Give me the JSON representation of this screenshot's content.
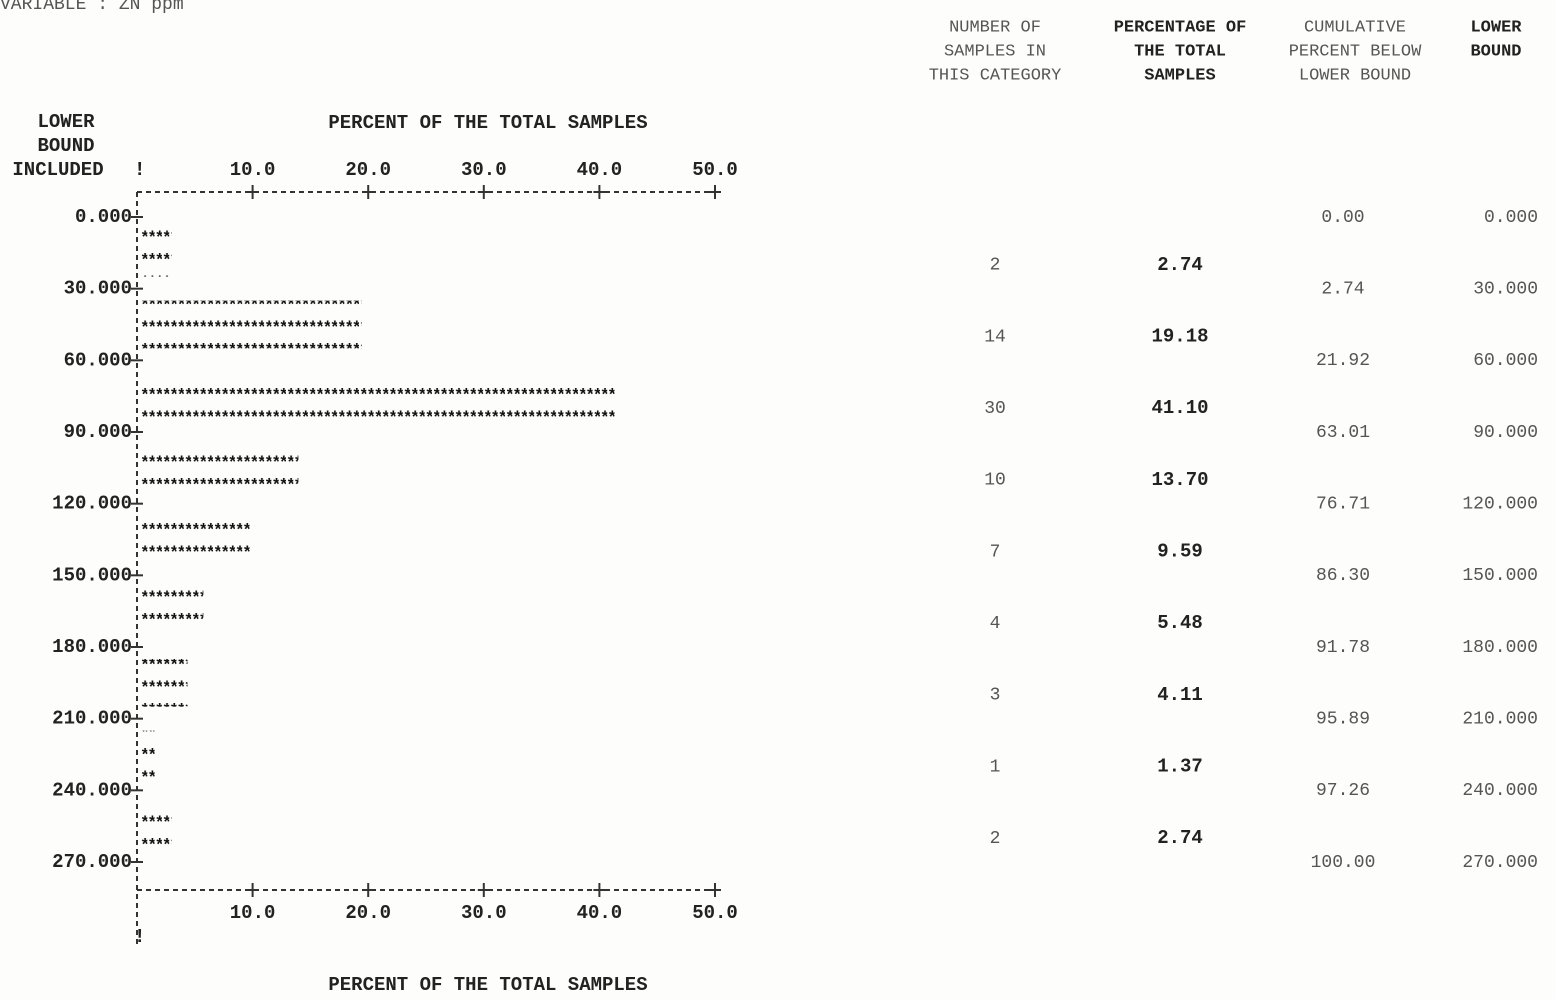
{
  "header": {
    "variable": "VARIABLE : ZN ppm"
  },
  "chart_data": {
    "type": "histogram",
    "orientation": "horizontal",
    "title": "PERCENT OF THE TOTAL SAMPLES",
    "ylabel": [
      "LOWER",
      "BOUND",
      "INCLUDED"
    ],
    "bins": [
      0,
      30,
      60,
      90,
      120,
      150,
      180,
      210,
      240,
      270
    ],
    "values": [
      2.74,
      19.18,
      41.1,
      13.7,
      9.59,
      5.48,
      4.11,
      1.37,
      2.74
    ],
    "value_labels": [
      "2.74",
      "19.18",
      "41.10",
      "13.70",
      "9.59",
      "5.48",
      "4.11",
      "1.37",
      "2.74"
    ],
    "color": "#111111",
    "xlim": [
      0,
      50
    ],
    "xticks": [
      {
        "value": 10,
        "label": "10.0"
      },
      {
        "value": 20,
        "label": "20.0"
      },
      {
        "value": 30,
        "label": "30.0"
      },
      {
        "value": 40,
        "label": "40.0"
      },
      {
        "value": 50,
        "label": "50.0"
      }
    ],
    "ylim": [
      0,
      270
    ],
    "yticks": [
      {
        "value": 0,
        "label": "0.000"
      },
      {
        "value": 30,
        "label": "30.000"
      },
      {
        "value": 60,
        "label": "60.000"
      },
      {
        "value": 90,
        "label": "90.000"
      },
      {
        "value": 120,
        "label": "120.000"
      },
      {
        "value": 150,
        "label": "150.000"
      },
      {
        "value": 180,
        "label": "180.000"
      },
      {
        "value": 210,
        "label": "210.000"
      },
      {
        "value": 240,
        "label": "240.000"
      },
      {
        "value": 270,
        "label": "270.000"
      }
    ]
  },
  "table": {
    "headers": [
      [
        "NUMBER OF",
        "SAMPLES IN",
        "THIS CATEGORY"
      ],
      [
        "PERCENTAGE OF",
        "THE TOTAL",
        "SAMPLES"
      ],
      [
        "CUMULATIVE",
        "PERCENT BELOW",
        "LOWER BOUND"
      ],
      [
        "LOWER",
        "BOUND"
      ]
    ],
    "counts": [
      "2",
      "14",
      "30",
      "10",
      "7",
      "4",
      "3",
      "1",
      "2"
    ],
    "cumulative": [
      "0.00",
      "2.74",
      "21.92",
      "63.01",
      "76.71",
      "86.30",
      "91.78",
      "95.89",
      "97.26",
      "100.00"
    ]
  }
}
